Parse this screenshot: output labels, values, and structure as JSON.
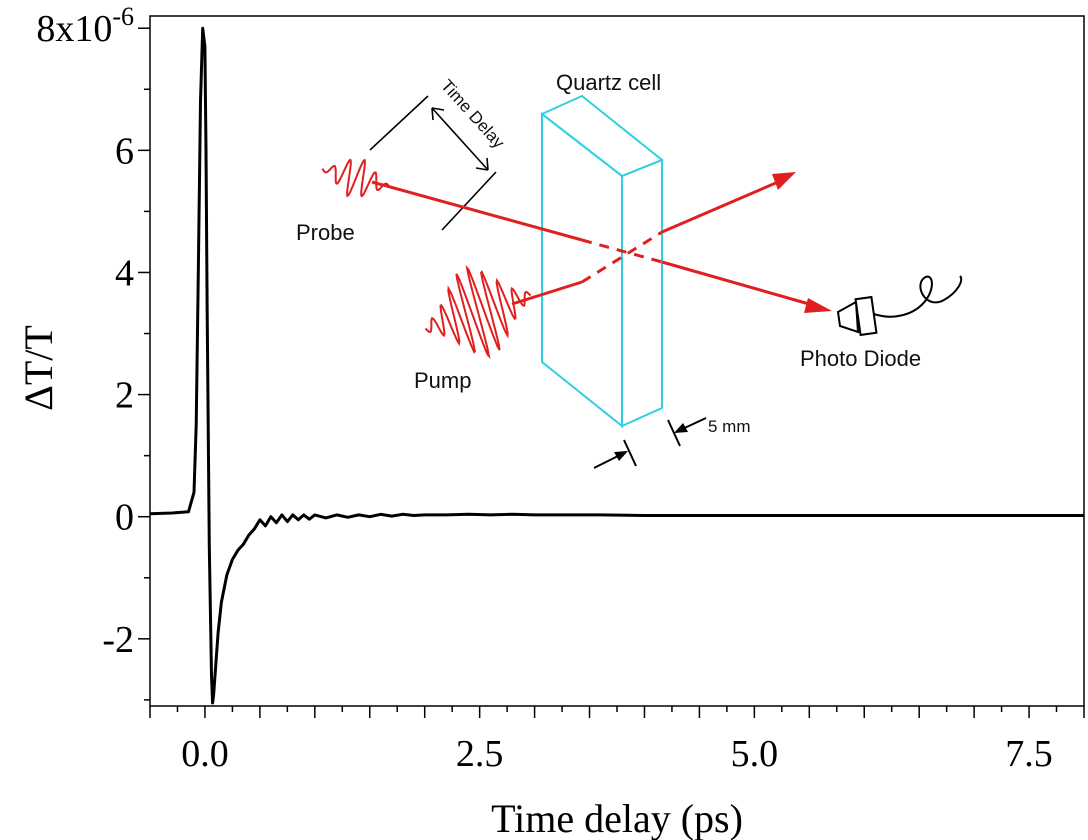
{
  "chart_data": {
    "type": "line",
    "xlabel": "Time delay (ps)",
    "ylabel": "ΔT/T",
    "xlim": [
      -0.5,
      8.0
    ],
    "ylim": [
      -3.1,
      8.2
    ],
    "x_ticks": [
      {
        "value": 0.0,
        "label": "0.0"
      },
      {
        "value": 2.5,
        "label": "2.5"
      },
      {
        "value": 5.0,
        "label": "5.0"
      },
      {
        "value": 7.5,
        "label": "7.5"
      }
    ],
    "y_ticks": [
      {
        "value": 8,
        "label": "8x10",
        "exponent": "-6"
      },
      {
        "value": 6,
        "label": "6"
      },
      {
        "value": 4,
        "label": "4"
      },
      {
        "value": 2,
        "label": "2"
      },
      {
        "value": 0,
        "label": "0"
      },
      {
        "value": -2,
        "label": "-2"
      }
    ],
    "series": [
      {
        "color": "#000000",
        "x": [
          -0.5,
          -0.3,
          -0.15,
          -0.1,
          -0.08,
          -0.06,
          -0.04,
          -0.02,
          0.0,
          0.01,
          0.02,
          0.04,
          0.06,
          0.07,
          0.08,
          0.1,
          0.12,
          0.15,
          0.2,
          0.25,
          0.3,
          0.35,
          0.4,
          0.45,
          0.5,
          0.55,
          0.6,
          0.65,
          0.7,
          0.75,
          0.8,
          0.85,
          0.9,
          0.95,
          1.0,
          1.1,
          1.2,
          1.3,
          1.4,
          1.5,
          1.6,
          1.7,
          1.8,
          1.9,
          2.0,
          2.2,
          2.4,
          2.6,
          2.8,
          3.0,
          3.3,
          3.6,
          4.0,
          4.5,
          5.0,
          6.0,
          7.0,
          8.0
        ],
        "y": [
          0.05,
          0.06,
          0.08,
          0.4,
          1.5,
          4.0,
          6.8,
          8.0,
          7.7,
          6.0,
          3.5,
          -0.5,
          -2.6,
          -3.05,
          -2.9,
          -2.4,
          -1.9,
          -1.4,
          -0.95,
          -0.7,
          -0.55,
          -0.45,
          -0.3,
          -0.2,
          -0.05,
          -0.15,
          0.0,
          -0.1,
          0.03,
          -0.08,
          0.03,
          -0.05,
          0.03,
          -0.04,
          0.03,
          -0.02,
          0.03,
          -0.01,
          0.03,
          0.0,
          0.04,
          0.01,
          0.04,
          0.02,
          0.03,
          0.03,
          0.04,
          0.03,
          0.04,
          0.03,
          0.03,
          0.03,
          0.02,
          0.02,
          0.02,
          0.02,
          0.02,
          0.02
        ]
      }
    ],
    "grid": false,
    "legend": "none"
  },
  "inset": {
    "quartz_label": "Quartz cell",
    "time_delay_label": "Time Delay",
    "probe_label": "Probe",
    "pump_label": "Pump",
    "detector_label": "Photo Diode",
    "thickness_label": "5 mm",
    "beam_color": "#e02020",
    "cell_color": "#30d0e0"
  }
}
